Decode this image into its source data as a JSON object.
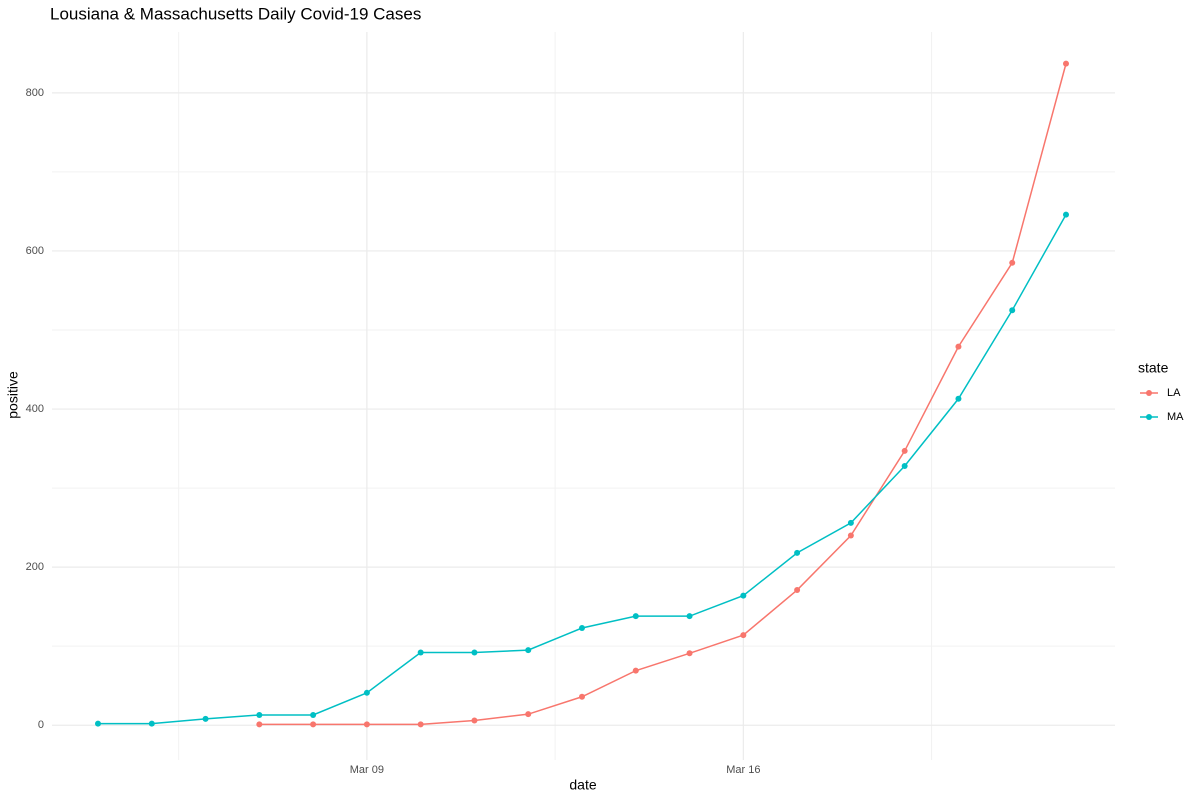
{
  "chart_data": {
    "type": "line",
    "title": "Lousiana & Massachusetts Daily Covid-19 Cases",
    "x_label": "date",
    "y_label": "positive",
    "legend_title": "state",
    "x": [
      "Mar 04",
      "Mar 05",
      "Mar 06",
      "Mar 07",
      "Mar 08",
      "Mar 09",
      "Mar 10",
      "Mar 11",
      "Mar 12",
      "Mar 13",
      "Mar 14",
      "Mar 15",
      "Mar 16",
      "Mar 17",
      "Mar 18",
      "Mar 19",
      "Mar 20",
      "Mar 21",
      "Mar 22"
    ],
    "xticks": [
      "Mar 09",
      "Mar 16"
    ],
    "series": [
      {
        "name": "LA",
        "color": "#F8766D",
        "values": [
          null,
          null,
          null,
          1,
          1,
          1,
          1,
          6,
          14,
          36,
          69,
          91,
          114,
          171,
          240,
          347,
          479,
          585,
          837
        ]
      },
      {
        "name": "MA",
        "color": "#00BFC4",
        "values": [
          2,
          2,
          8,
          13,
          13,
          41,
          92,
          92,
          95,
          123,
          138,
          138,
          164,
          218,
          256,
          328,
          413,
          525,
          646
        ]
      }
    ],
    "ylim": [
      -44,
      877
    ],
    "yticks": [
      0,
      200,
      400,
      600,
      800
    ],
    "grid": true,
    "legend": "right"
  }
}
